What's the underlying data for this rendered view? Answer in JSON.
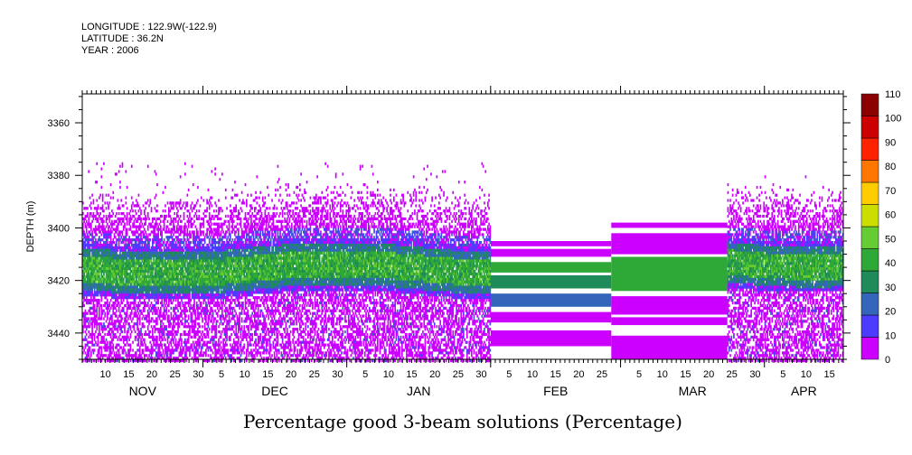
{
  "header": {
    "longitude_line": "LONGITUDE : 122.9W(-122.9)",
    "latitude_line": "LATITUDE : 36.2N",
    "year_line": "YEAR : 2006"
  },
  "chart_data": {
    "type": "heatmap",
    "title": "Percentage good 3-beam solutions (Percentage)",
    "xlabel": "",
    "ylabel": "DEPTH (m)",
    "ylim": [
      3450,
      3349
    ],
    "y_ticks": [
      3360,
      3380,
      3400,
      3420,
      3440
    ],
    "x_months": [
      {
        "name": "NOV",
        "start": "2005-11-05",
        "days": [
          10,
          15,
          20,
          25,
          30
        ]
      },
      {
        "name": "DEC",
        "start": "2005-12-01",
        "days": [
          5,
          10,
          15,
          20,
          25,
          30
        ]
      },
      {
        "name": "JAN",
        "start": "2006-01-01",
        "days": [
          5,
          10,
          15,
          20,
          25,
          30
        ]
      },
      {
        "name": "FEB",
        "start": "2006-02-01",
        "days": [
          5,
          10,
          15,
          20,
          25
        ]
      },
      {
        "name": "MAR",
        "start": "2006-03-01",
        "days": [
          5,
          10,
          15,
          20,
          25,
          30
        ]
      },
      {
        "name": "APR",
        "start": "2006-04-01",
        "days": [
          5,
          10,
          15
        ]
      }
    ],
    "x_range": [
      "2005-11-05",
      "2006-04-18"
    ],
    "colorbar": {
      "levels": [
        0,
        10,
        20,
        30,
        40,
        50,
        60,
        70,
        80,
        90,
        100,
        110
      ],
      "colors": [
        "#cc00ff",
        "#4c3cff",
        "#3366bb",
        "#1f8a5a",
        "#2ea836",
        "#66cc33",
        "#ccdd00",
        "#ffcc00",
        "#ff7700",
        "#ff2200",
        "#cc0000",
        "#8b0000"
      ]
    },
    "series_description_by_period": [
      {
        "period": "2005-11-05 to 2006-01-31",
        "core_depth": [
          3405,
          3425
        ],
        "core_values": [
          35,
          45
        ],
        "scatter_range": [
          3375,
          3450
        ]
      },
      {
        "period": "2006-02-01 to 2006-02-26",
        "bands": [
          [
            3405,
            3407,
            0
          ],
          [
            3408,
            3411,
            0
          ],
          [
            3413,
            3417,
            45
          ],
          [
            3418,
            3423,
            35
          ],
          [
            3425,
            3430,
            20
          ],
          [
            3432,
            3436,
            0
          ],
          [
            3439,
            3445,
            0
          ]
        ]
      },
      {
        "period": "2006-02-27 to 2006-03-23",
        "bands": [
          [
            3398,
            3400,
            0
          ],
          [
            3402,
            3410,
            0
          ],
          [
            3411,
            3424,
            45
          ],
          [
            3426,
            3433,
            0
          ],
          [
            3434,
            3437,
            0
          ],
          [
            3441,
            3450,
            0
          ]
        ]
      },
      {
        "period": "2006-03-24 to 2006-04-18",
        "core_depth": [
          3403,
          3422
        ],
        "core_values": [
          35,
          45
        ],
        "scatter_range": [
          3380,
          3450
        ]
      }
    ]
  }
}
